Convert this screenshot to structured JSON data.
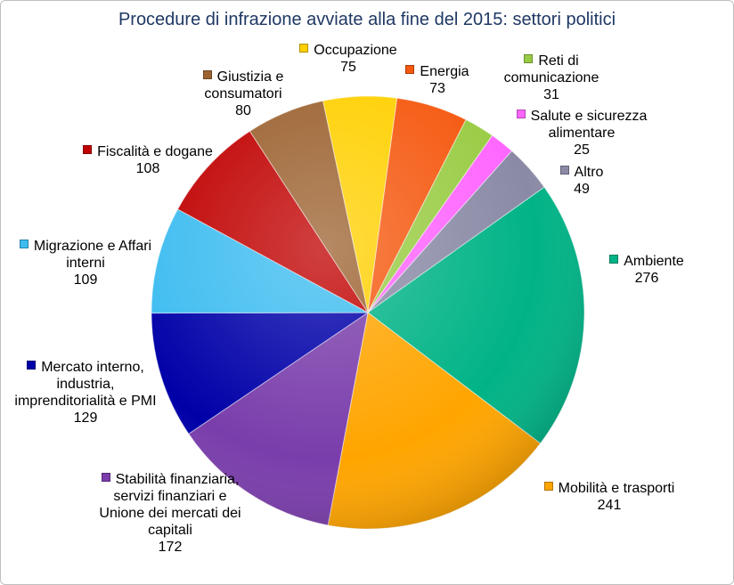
{
  "chart_data": {
    "type": "pie",
    "title": "Procedure di infrazione avviate alla fine del 2015: settori politici",
    "categories": [
      "Occupazione",
      "Energia",
      "Reti di comunicazione",
      "Salute e sicurezza alimentare",
      "Altro",
      "Ambiente",
      "Mobilità e trasporti",
      "Stabilità finanziaria, servizi finanziari e Unione dei mercati dei capitali",
      "Mercato interno, industria, imprenditorialità e PMI",
      "Migrazione e Affari interni",
      "Fiscalità e dogane",
      "Giustizia e consumatori"
    ],
    "values": [
      75,
      73,
      31,
      25,
      49,
      276,
      241,
      172,
      129,
      109,
      108,
      80
    ],
    "colors": [
      "#ffd000",
      "#f5580f",
      "#99cc44",
      "#ff66ff",
      "#8a8aa6",
      "#00b386",
      "#ffa500",
      "#7a3dab",
      "#0000a8",
      "#3cbcf0",
      "#c00000",
      "#9c6230"
    ]
  }
}
